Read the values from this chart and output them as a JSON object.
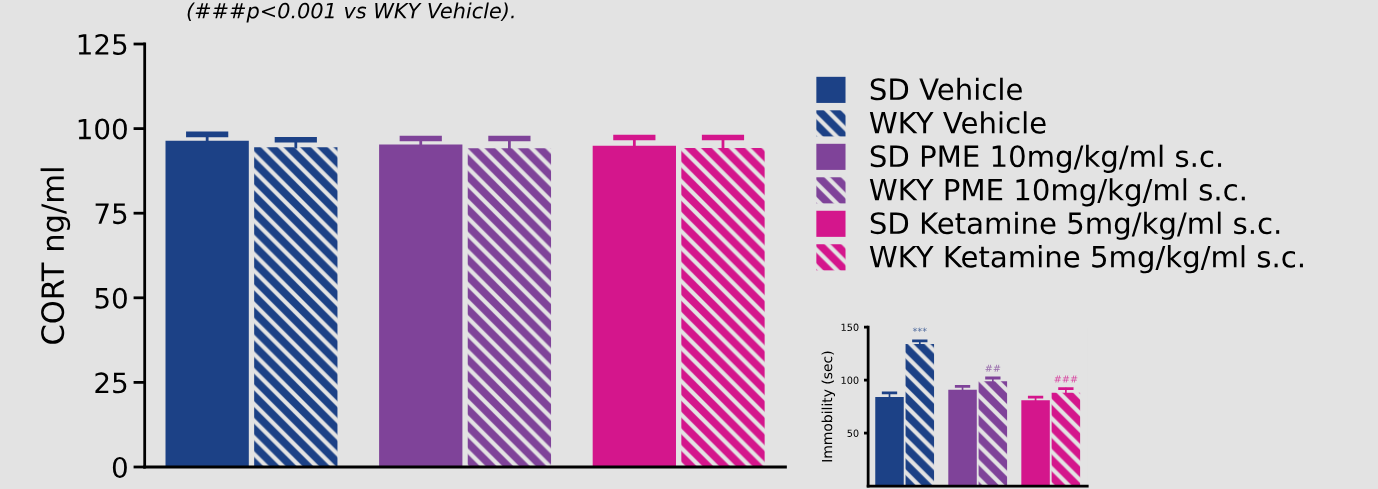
{
  "chart_data": [
    {
      "type": "bar",
      "ylabel": "CORT ng/ml",
      "categories": [
        null,
        null,
        null
      ],
      "ylim": [
        0,
        125
      ],
      "yticks": [
        0,
        25,
        50,
        75,
        100,
        125
      ],
      "legend": "right",
      "grid": false,
      "annotations": [
        "(###p<0.001 vs WKY Vehicle)."
      ],
      "series": [
        {
          "name": "SD Vehicle",
          "color": "#1c4186",
          "values": [
            96.4,
            null,
            null
          ],
          "errors": [
            [
              96.4,
              98.3
            ],
            null,
            null
          ]
        },
        {
          "name": "WKY Vehicle",
          "color": "#1c4186",
          "values": [
            94.5,
            null,
            null
          ],
          "errors": [
            [
              94.5,
              96.7
            ],
            null,
            null
          ]
        },
        {
          "name": "SD PME 10mg/kg/ml s.c.",
          "color": "#7f4399",
          "values": [
            null,
            95.3,
            null
          ],
          "errors": [
            null,
            [
              95.3,
              97.1
            ],
            null
          ]
        },
        {
          "name": "WKY PME 10mg/kg/ml s.c.",
          "color": "#7f4399",
          "values": [
            null,
            94.2,
            null
          ],
          "errors": [
            null,
            [
              94.2,
              97.1
            ],
            null
          ]
        },
        {
          "name": "SD Ketamine 5mg/kg/ml s.c.",
          "color": "#d4168c",
          "values": [
            null,
            null,
            94.9
          ],
          "errors": [
            null,
            null,
            [
              94.9,
              97.4
            ]
          ]
        },
        {
          "name": "WKY Ketamine 5mg/kg/ml s.c.",
          "color": "#d4168c",
          "values": [
            null,
            null,
            94.3
          ],
          "errors": [
            null,
            null,
            [
              94.3,
              97.4
            ]
          ]
        }
      ]
    },
    {
      "type": "bar",
      "ylabel": "Immobility (sec)",
      "categories": [
        null,
        null,
        null
      ],
      "ylim": [
        0,
        150
      ],
      "yticks": [
        50,
        100,
        150
      ],
      "legend": false,
      "grid": false,
      "series": [
        {
          "color": "#1c4186",
          "values": [
            84,
            null,
            null
          ],
          "errors": [
            [
              84,
              88
            ],
            null,
            null
          ]
        },
        {
          "color": "#1c4186",
          "values": [
            134,
            null,
            null
          ],
          "errors": [
            [
              134,
              137
            ],
            null,
            null
          ],
          "value_labels": [
            "***",
            null,
            null
          ]
        },
        {
          "color": "#7f4399",
          "values": [
            null,
            91,
            null
          ],
          "errors": [
            null,
            [
              91,
              94
            ],
            null
          ]
        },
        {
          "color": "#7f4399",
          "values": [
            null,
            99,
            null
          ],
          "errors": [
            null,
            [
              99,
              102
            ],
            null
          ],
          "value_labels": [
            null,
            "##",
            null
          ]
        },
        {
          "color": "#d4168c",
          "values": [
            null,
            null,
            81
          ],
          "errors": [
            null,
            null,
            [
              81,
              84
            ]
          ]
        },
        {
          "color": "#d4168c",
          "values": [
            null,
            null,
            88
          ],
          "errors": [
            null,
            null,
            [
              88,
              92
            ]
          ],
          "value_labels": [
            null,
            null,
            "###"
          ]
        }
      ]
    }
  ]
}
